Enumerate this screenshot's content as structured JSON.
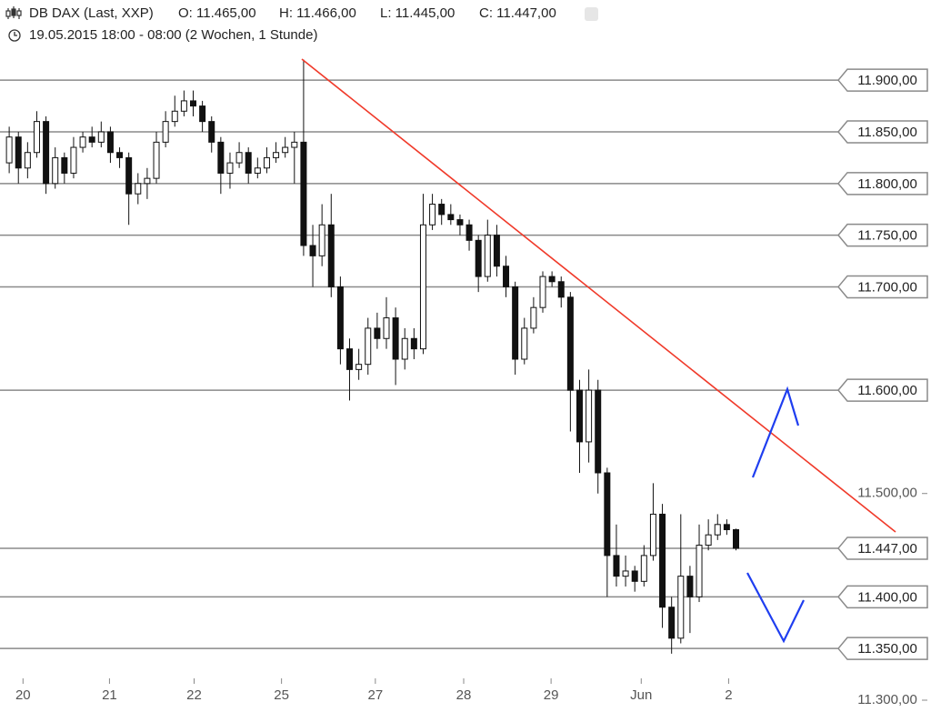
{
  "chart_data": {
    "type": "candlestick",
    "title": "DB DAX (Last, XXP)",
    "ohlc_labels": [
      "O: 11.465,00",
      "H: 11.466,00",
      "L: 11.445,00",
      "C: 11.447,00"
    ],
    "subtitle": "19.05.2015 18:00 - 08:00 (2 Wochen, 1 Stunde)",
    "x": [
      0,
      1,
      2,
      3,
      4,
      5,
      6,
      7,
      8,
      9,
      10,
      11,
      12,
      13,
      14,
      15,
      16,
      17,
      18,
      19,
      20,
      21,
      22,
      23,
      24,
      25,
      26,
      27,
      28,
      29,
      30,
      31,
      32,
      33,
      34,
      35,
      36,
      37,
      38,
      39,
      40,
      41,
      42,
      43,
      44,
      45,
      46,
      47,
      48,
      49,
      50,
      51,
      52,
      53,
      54,
      55,
      56,
      57,
      58,
      59,
      60,
      61,
      62,
      63,
      64,
      65,
      66,
      67,
      68,
      69,
      70,
      71,
      72,
      73,
      74,
      75,
      76,
      77,
      78,
      79
    ],
    "open": [
      11820,
      11845,
      11815,
      11830,
      11860,
      11800,
      11825,
      11810,
      11835,
      11845,
      11840,
      11850,
      11830,
      11825,
      11790,
      11800,
      11805,
      11840,
      11860,
      11870,
      11880,
      11875,
      11860,
      11840,
      11810,
      11820,
      11830,
      11810,
      11815,
      11825,
      11830,
      11835,
      11840,
      11740,
      11730,
      11760,
      11700,
      11640,
      11620,
      11625,
      11660,
      11650,
      11670,
      11630,
      11650,
      11640,
      11760,
      11780,
      11770,
      11765,
      11760,
      11745,
      11710,
      11750,
      11720,
      11700,
      11630,
      11660,
      11680,
      11710,
      11705,
      11690,
      11600,
      11550,
      11600,
      11520,
      11440,
      11420,
      11425,
      11415,
      11440,
      11480,
      11390,
      11360,
      11420,
      11400,
      11450,
      11460,
      11470,
      11465
    ],
    "high": [
      11855,
      11850,
      11840,
      11870,
      11865,
      11835,
      11830,
      11845,
      11850,
      11855,
      11860,
      11855,
      11835,
      11830,
      11810,
      11815,
      11850,
      11870,
      11885,
      11890,
      11890,
      11880,
      11865,
      11845,
      11830,
      11840,
      11835,
      11825,
      11835,
      11840,
      11845,
      11850,
      11920,
      11760,
      11780,
      11790,
      11710,
      11650,
      11640,
      11670,
      11675,
      11690,
      11680,
      11660,
      11660,
      11790,
      11790,
      11785,
      11780,
      11770,
      11765,
      11750,
      11765,
      11760,
      11730,
      11705,
      11670,
      11690,
      11715,
      11715,
      11710,
      11695,
      11610,
      11620,
      11610,
      11525,
      11470,
      11440,
      11430,
      11450,
      11510,
      11490,
      11400,
      11480,
      11430,
      11470,
      11475,
      11480,
      11475,
      11466
    ],
    "low": [
      11810,
      11800,
      11805,
      11825,
      11790,
      11795,
      11800,
      11805,
      11830,
      11835,
      11835,
      11820,
      11815,
      11760,
      11780,
      11785,
      11800,
      11835,
      11855,
      11865,
      11865,
      11850,
      11830,
      11790,
      11795,
      11815,
      11800,
      11805,
      11810,
      11820,
      11825,
      11800,
      11730,
      11700,
      11720,
      11690,
      11625,
      11590,
      11610,
      11615,
      11640,
      11640,
      11605,
      11620,
      11630,
      11635,
      11755,
      11760,
      11760,
      11750,
      11735,
      11695,
      11705,
      11710,
      11690,
      11615,
      11625,
      11655,
      11675,
      11700,
      11680,
      11560,
      11520,
      11530,
      11500,
      11400,
      11410,
      11410,
      11405,
      11410,
      11435,
      11370,
      11345,
      11355,
      11365,
      11395,
      11445,
      11455,
      11460,
      11445
    ],
    "close": [
      11845,
      11815,
      11830,
      11860,
      11800,
      11825,
      11810,
      11835,
      11845,
      11840,
      11850,
      11830,
      11825,
      11790,
      11800,
      11805,
      11840,
      11860,
      11870,
      11880,
      11875,
      11860,
      11840,
      11810,
      11820,
      11830,
      11810,
      11815,
      11825,
      11830,
      11835,
      11840,
      11740,
      11730,
      11760,
      11700,
      11640,
      11620,
      11625,
      11660,
      11650,
      11670,
      11630,
      11650,
      11640,
      11760,
      11780,
      11770,
      11765,
      11760,
      11745,
      11710,
      11750,
      11720,
      11700,
      11630,
      11660,
      11680,
      11710,
      11705,
      11690,
      11600,
      11550,
      11600,
      11520,
      11440,
      11420,
      11425,
      11415,
      11440,
      11480,
      11390,
      11360,
      11420,
      11400,
      11450,
      11460,
      11470,
      11465,
      11447
    ],
    "xlim": [
      -1,
      100
    ],
    "xticks": [
      {
        "value": 1.5,
        "label": "20"
      },
      {
        "value": 10.9,
        "label": "21"
      },
      {
        "value": 20.1,
        "label": "22"
      },
      {
        "value": 29.6,
        "label": "25"
      },
      {
        "value": 39.8,
        "label": "27"
      },
      {
        "value": 49.4,
        "label": "28"
      },
      {
        "value": 58.9,
        "label": "29"
      },
      {
        "value": 68.7,
        "label": "Jun"
      },
      {
        "value": 78.2,
        "label": "2"
      }
    ],
    "ylim": [
      11300,
      11960
    ],
    "yticks": [
      {
        "value": 11500,
        "label": "11.500,00"
      },
      {
        "value": 11300,
        "label": "11.300,00"
      }
    ],
    "levels": [
      {
        "value": 11900,
        "label": "11.900,00"
      },
      {
        "value": 11850,
        "label": "11.850,00"
      },
      {
        "value": 11800,
        "label": "11.800,00"
      },
      {
        "value": 11750,
        "label": "11.750,00"
      },
      {
        "value": 11700,
        "label": "11.700,00"
      },
      {
        "value": 11600,
        "label": "11.600,00"
      },
      {
        "value": 11447,
        "label": "11.447,00"
      },
      {
        "value": 11400,
        "label": "11.400,00"
      },
      {
        "value": 11350,
        "label": "11.350,00"
      }
    ]
  }
}
